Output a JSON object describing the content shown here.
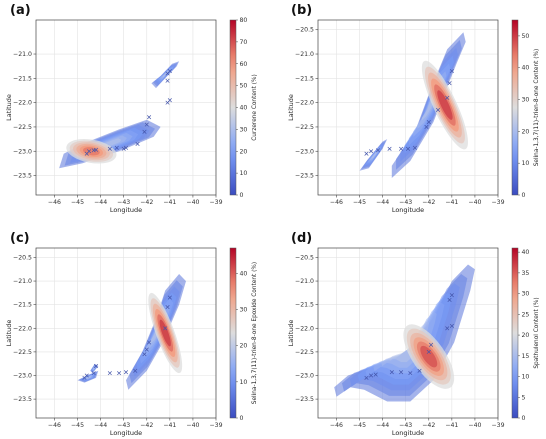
{
  "colors": {
    "low": "#3b4cc0",
    "mid": "#dddddd",
    "high": "#b40426",
    "marker": "#4455aa"
  },
  "chart_data": [
    {
      "type": "heatmap",
      "panel_label": "(a)",
      "xlabel": "Longitude",
      "ylabel": "Latitude",
      "xlim": [
        -46.8,
        -39
      ],
      "ylim": [
        -23.9,
        -20.3
      ],
      "xticks": [
        -46,
        -45,
        -44,
        -43,
        -42,
        -41,
        -40,
        -39
      ],
      "yticks": [
        -21.0,
        -21.5,
        -22.0,
        -22.5,
        -23.0,
        -23.5
      ],
      "xtick_labels": [
        "−46",
        "−45",
        "−44",
        "−43",
        "−42",
        "−41",
        "−40",
        "−39"
      ],
      "ytick_labels": [
        "−21.0",
        "−21.5",
        "−22.0",
        "−22.5",
        "−23.0",
        "−23.5"
      ],
      "colorbar": {
        "label": "Curzerene Content (%)",
        "range": [
          0,
          80
        ],
        "ticks": [
          0,
          10,
          20,
          30,
          40,
          50,
          60,
          70,
          80
        ],
        "tick_labels": [
          "0",
          "10",
          "20",
          "30",
          "40",
          "50",
          "60",
          "70",
          "80"
        ]
      },
      "points": [
        [
          -44.6,
          -23.05
        ],
        [
          -44.5,
          -23.0
        ],
        [
          -44.3,
          -22.98
        ],
        [
          -44.2,
          -22.97
        ],
        [
          -43.6,
          -22.95
        ],
        [
          -43.3,
          -22.93
        ],
        [
          -43.0,
          -22.95
        ],
        [
          -42.9,
          -22.93
        ],
        [
          -42.4,
          -22.85
        ],
        [
          -42.1,
          -22.6
        ],
        [
          -42.0,
          -22.45
        ],
        [
          -41.9,
          -22.3
        ],
        [
          -41.1,
          -22.0
        ],
        [
          -41.0,
          -21.95
        ],
        [
          -41.1,
          -21.55
        ],
        [
          -41.1,
          -21.4
        ],
        [
          -41.0,
          -21.35
        ]
      ],
      "hotspot": {
        "lon": -44.4,
        "lat": -23.0,
        "value": 65
      }
    },
    {
      "type": "heatmap",
      "panel_label": "(b)",
      "xlabel": "Longitude",
      "ylabel": "Latitude",
      "xlim": [
        -46.8,
        -39
      ],
      "ylim": [
        -23.9,
        -20.3
      ],
      "xticks": [
        -46,
        -45,
        -44,
        -43,
        -42,
        -41,
        -40,
        -39
      ],
      "yticks": [
        -20.5,
        -21.0,
        -21.5,
        -22.0,
        -22.5,
        -23.0,
        -23.5
      ],
      "xtick_labels": [
        "−46",
        "−45",
        "−44",
        "−43",
        "−42",
        "−41",
        "−40",
        "−39"
      ],
      "ytick_labels": [
        "−20.5",
        "−21.0",
        "−21.5",
        "−22.0",
        "−22.5",
        "−23.0",
        "−23.5"
      ],
      "colorbar": {
        "label": "Selina-1,3,7(11)-trien-8-one Content (%)",
        "range": [
          0,
          55
        ],
        "ticks": [
          0,
          10,
          20,
          30,
          40,
          50
        ],
        "tick_labels": [
          "0",
          "10",
          "20",
          "30",
          "40",
          "50"
        ]
      },
      "points": [
        [
          -44.7,
          -23.05
        ],
        [
          -44.5,
          -23.0
        ],
        [
          -44.2,
          -22.98
        ],
        [
          -43.7,
          -22.95
        ],
        [
          -43.2,
          -22.95
        ],
        [
          -42.9,
          -22.95
        ],
        [
          -42.6,
          -22.93
        ],
        [
          -42.1,
          -22.5
        ],
        [
          -42.0,
          -22.4
        ],
        [
          -41.6,
          -22.15
        ],
        [
          -41.2,
          -21.9
        ],
        [
          -41.1,
          -21.6
        ],
        [
          -41.0,
          -21.35
        ]
      ],
      "hotspot": {
        "lon": -41.3,
        "lat": -22.05,
        "value": 50
      }
    },
    {
      "type": "heatmap",
      "panel_label": "(c)",
      "xlabel": "Longitude",
      "ylabel": "Latitude",
      "xlim": [
        -46.8,
        -39
      ],
      "ylim": [
        -23.9,
        -20.3
      ],
      "xticks": [
        -46,
        -45,
        -44,
        -43,
        -42,
        -41,
        -40,
        -39
      ],
      "yticks": [
        -20.5,
        -21.0,
        -21.5,
        -22.0,
        -22.5,
        -23.0,
        -23.5
      ],
      "xtick_labels": [
        "−46",
        "−45",
        "−44",
        "−43",
        "−42",
        "−41",
        "−40",
        "−39"
      ],
      "ytick_labels": [
        "−20.5",
        "−21.0",
        "−21.5",
        "−22.0",
        "−22.5",
        "−23.0",
        "−23.5"
      ],
      "colorbar": {
        "label": "Selina-1,3,7(11)-trien-8-one Epoxide Content (%)",
        "range": [
          0,
          47
        ],
        "ticks": [
          0,
          10,
          20,
          30,
          40
        ],
        "tick_labels": [
          "0",
          "10",
          "20",
          "30",
          "40"
        ]
      },
      "points": [
        [
          -44.7,
          -23.05
        ],
        [
          -44.6,
          -23.0
        ],
        [
          -44.3,
          -22.95
        ],
        [
          -44.2,
          -22.8
        ],
        [
          -43.6,
          -22.95
        ],
        [
          -43.2,
          -22.95
        ],
        [
          -42.9,
          -22.93
        ],
        [
          -42.5,
          -22.9
        ],
        [
          -42.1,
          -22.55
        ],
        [
          -42.0,
          -22.45
        ],
        [
          -41.9,
          -22.3
        ],
        [
          -41.2,
          -22.0
        ],
        [
          -41.1,
          -21.55
        ],
        [
          -41.0,
          -21.35
        ]
      ],
      "hotspot": {
        "lon": -41.2,
        "lat": -22.1,
        "value": 43
      }
    },
    {
      "type": "heatmap",
      "panel_label": "(d)",
      "xlabel": "Longitude",
      "ylabel": "Latitude",
      "xlim": [
        -46.8,
        -39
      ],
      "ylim": [
        -23.9,
        -20.3
      ],
      "xticks": [
        -46,
        -45,
        -44,
        -43,
        -42,
        -41,
        -40,
        -39
      ],
      "yticks": [
        -20.5,
        -21.0,
        -21.5,
        -22.0,
        -22.5,
        -23.0,
        -23.5
      ],
      "xtick_labels": [
        "−46",
        "−45",
        "−44",
        "−43",
        "−42",
        "−41",
        "−40",
        "−39"
      ],
      "ytick_labels": [
        "−20.5",
        "−21.0",
        "−21.5",
        "−22.0",
        "−22.5",
        "−23.0",
        "−23.5"
      ],
      "colorbar": {
        "label": "Spathulenol Content (%)",
        "range": [
          0,
          41
        ],
        "ticks": [
          0,
          5,
          10,
          15,
          20,
          25,
          30,
          35,
          40
        ],
        "tick_labels": [
          "0",
          "5",
          "10",
          "15",
          "20",
          "25",
          "30",
          "35",
          "40"
        ]
      },
      "points": [
        [
          -44.7,
          -23.05
        ],
        [
          -44.5,
          -23.0
        ],
        [
          -44.3,
          -22.98
        ],
        [
          -43.6,
          -22.93
        ],
        [
          -43.2,
          -22.93
        ],
        [
          -42.8,
          -22.95
        ],
        [
          -42.4,
          -22.9
        ],
        [
          -42.0,
          -22.5
        ],
        [
          -41.9,
          -22.35
        ],
        [
          -41.2,
          -22.0
        ],
        [
          -41.0,
          -21.95
        ],
        [
          -41.1,
          -21.4
        ],
        [
          -41.0,
          -21.3
        ]
      ],
      "hotspot": {
        "lon": -42.0,
        "lat": -22.6,
        "value": 36
      }
    }
  ]
}
